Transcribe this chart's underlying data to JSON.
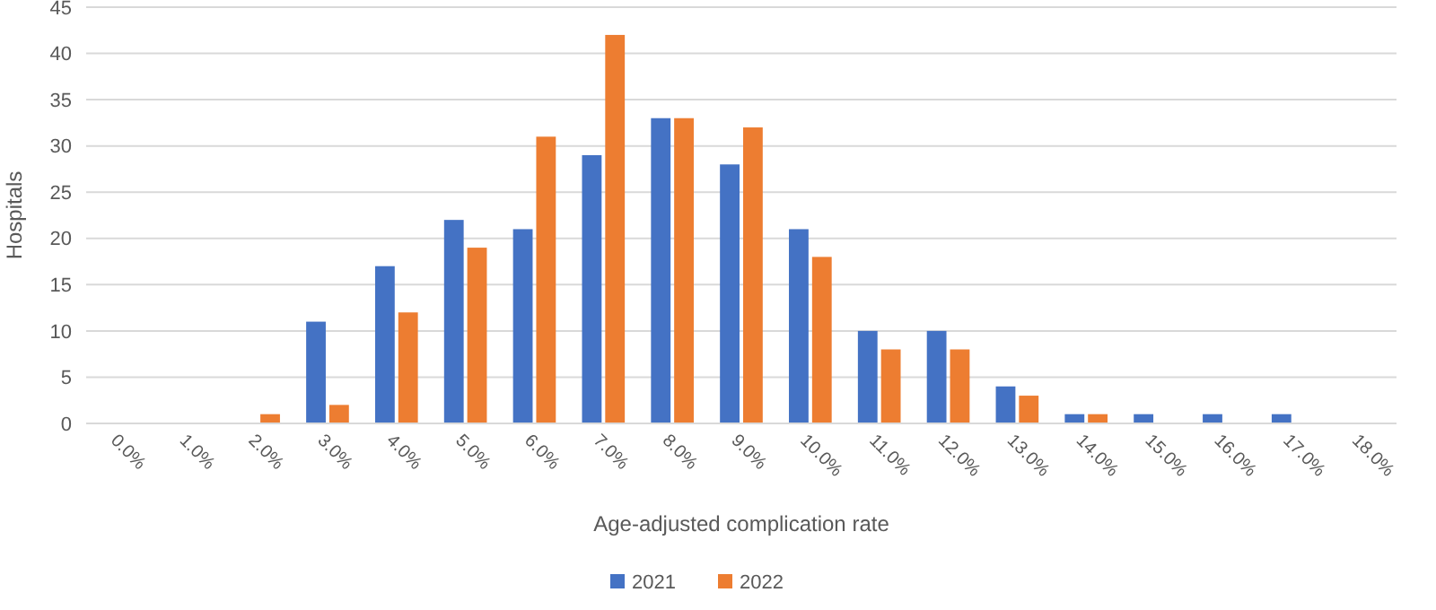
{
  "chart_data": {
    "type": "bar",
    "xlabel": "Age-adjusted complication rate",
    "ylabel": "Hospitals",
    "categories": [
      "0.0%",
      "1.0%",
      "2.0%",
      "3.0%",
      "4.0%",
      "5.0%",
      "6.0%",
      "7.0%",
      "8.0%",
      "9.0%",
      "10.0%",
      "11.0%",
      "12.0%",
      "13.0%",
      "14.0%",
      "15.0%",
      "16.0%",
      "17.0%",
      "18.0%"
    ],
    "series": [
      {
        "name": "2021",
        "color": "#4472c4",
        "values": [
          0,
          0,
          0,
          11,
          17,
          22,
          21,
          29,
          33,
          28,
          21,
          10,
          10,
          4,
          1,
          1,
          1,
          1,
          0
        ]
      },
      {
        "name": "2022",
        "color": "#ed7d31",
        "values": [
          0,
          0,
          1,
          2,
          12,
          19,
          31,
          42,
          33,
          32,
          18,
          8,
          8,
          3,
          1,
          0,
          0,
          0,
          0
        ]
      }
    ],
    "ylim": [
      0,
      45
    ],
    "yticks": [
      0,
      5,
      10,
      15,
      20,
      25,
      30,
      35,
      40,
      45
    ],
    "grid": "y",
    "legend": "bottom"
  }
}
